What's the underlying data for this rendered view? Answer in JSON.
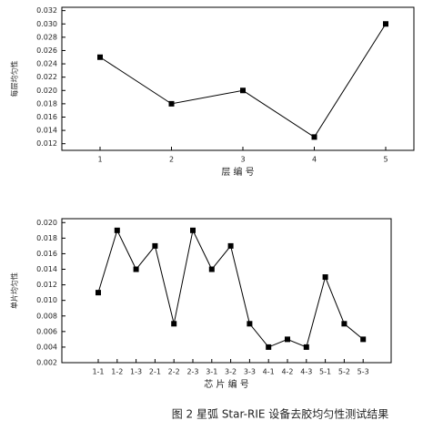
{
  "caption": "图 2 星弧 Star-RIE 设备去胶均匀性测试结果",
  "chart_data": [
    {
      "type": "line",
      "x_label": "层 编 号",
      "y_label": "每层均匀性",
      "categories": [
        "1",
        "2",
        "3",
        "4",
        "5"
      ],
      "values": [
        0.025,
        0.018,
        0.02,
        0.013,
        0.03
      ],
      "color": "#000000",
      "ylim": [
        0.011,
        0.0325
      ],
      "yticks": [
        {
          "value": 0.012,
          "label": "0.012"
        },
        {
          "value": 0.014,
          "label": "0.014"
        },
        {
          "value": 0.016,
          "label": "0.016"
        },
        {
          "value": 0.018,
          "label": "0.018"
        },
        {
          "value": 0.02,
          "label": "0.020"
        },
        {
          "value": 0.022,
          "label": "0.022"
        },
        {
          "value": 0.024,
          "label": "0.024"
        },
        {
          "value": 0.026,
          "label": "0.026"
        },
        {
          "value": 0.028,
          "label": "0.028"
        },
        {
          "value": 0.03,
          "label": "0.030"
        },
        {
          "value": 0.032,
          "label": "0.032"
        }
      ]
    },
    {
      "type": "line",
      "x_label": "芯 片 编 号",
      "y_label": "单片均匀性",
      "categories": [
        "1-1",
        "1-2",
        "1-3",
        "2-1",
        "2-2",
        "2-3",
        "3-1",
        "3-2",
        "3-3",
        "4-1",
        "4-2",
        "4-3",
        "5-1",
        "5-2",
        "5-3"
      ],
      "values": [
        0.011,
        0.019,
        0.014,
        0.017,
        0.007,
        0.019,
        0.014,
        0.017,
        0.007,
        0.004,
        0.005,
        0.004,
        0.013,
        0.007,
        0.005
      ],
      "color": "#000000",
      "ylim": [
        0.002,
        0.0205
      ],
      "yticks": [
        {
          "value": 0.002,
          "label": "0.002"
        },
        {
          "value": 0.004,
          "label": "0.004"
        },
        {
          "value": 0.006,
          "label": "0.006"
        },
        {
          "value": 0.008,
          "label": "0.008"
        },
        {
          "value": 0.01,
          "label": "0.010"
        },
        {
          "value": 0.012,
          "label": "0.012"
        },
        {
          "value": 0.014,
          "label": "0.014"
        },
        {
          "value": 0.016,
          "label": "0.016"
        },
        {
          "value": 0.018,
          "label": "0.018"
        },
        {
          "value": 0.02,
          "label": "0.020"
        }
      ]
    }
  ]
}
